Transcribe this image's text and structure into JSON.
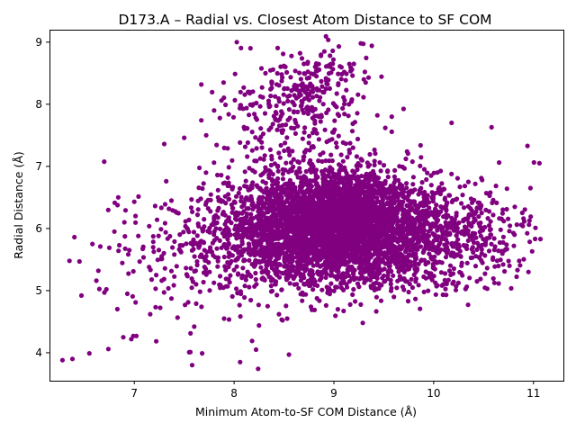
{
  "chart_data": {
    "type": "scatter",
    "title": "D173.A – Radial vs. Closest Atom Distance to SF COM",
    "xlabel": "Minimum Atom-to-SF COM Distance (Å)",
    "ylabel": "Radial Distance (Å)",
    "xlim": [
      6.15,
      11.3
    ],
    "ylim": [
      3.55,
      9.2
    ],
    "xticks": [
      7,
      8,
      9,
      10,
      11
    ],
    "yticks": [
      4,
      5,
      6,
      7,
      8,
      9
    ],
    "grid": false,
    "legend": "none",
    "marker_color": "#800080",
    "clusters": [
      {
        "center": [
          9.1,
          5.95
        ],
        "spread": [
          0.55,
          0.42
        ],
        "count": 3200
      },
      {
        "center": [
          9.0,
          6.4
        ],
        "spread": [
          0.35,
          0.35
        ],
        "count": 700
      },
      {
        "center": [
          8.5,
          5.9
        ],
        "spread": [
          0.45,
          0.45
        ],
        "count": 500
      },
      {
        "center": [
          8.6,
          7.9
        ],
        "spread": [
          0.35,
          0.4
        ],
        "count": 260
      },
      {
        "center": [
          8.9,
          8.45
        ],
        "spread": [
          0.25,
          0.25
        ],
        "count": 80
      },
      {
        "center": [
          7.6,
          5.6
        ],
        "spread": [
          0.45,
          0.6
        ],
        "count": 180
      },
      {
        "center": [
          10.3,
          5.9
        ],
        "spread": [
          0.35,
          0.4
        ],
        "count": 250
      }
    ],
    "points": [
      [
        6.28,
        3.88
      ],
      [
        6.38,
        3.9
      ],
      [
        6.55,
        3.99
      ],
      [
        6.74,
        4.06
      ],
      [
        6.35,
        5.48
      ],
      [
        6.4,
        5.86
      ],
      [
        6.45,
        5.47
      ],
      [
        6.47,
        4.92
      ],
      [
        6.58,
        5.75
      ],
      [
        6.62,
        5.16
      ],
      [
        6.64,
        5.32
      ],
      [
        6.66,
        5.71
      ],
      [
        6.7,
        4.97
      ],
      [
        6.72,
        5.02
      ],
      [
        6.75,
        5.69
      ],
      [
        6.8,
        5.95
      ],
      [
        6.85,
        5.73
      ],
      [
        6.89,
        4.25
      ],
      [
        6.9,
        6.1
      ],
      [
        6.93,
        4.95
      ],
      [
        6.95,
        5.65
      ],
      [
        6.97,
        4.22
      ],
      [
        6.99,
        4.27
      ],
      [
        7.0,
        6.43
      ],
      [
        7.02,
        4.27
      ],
      [
        7.04,
        5.88
      ],
      [
        7.3,
        7.36
      ],
      [
        7.32,
        6.76
      ],
      [
        7.5,
        7.46
      ],
      [
        7.72,
        7.5
      ],
      [
        7.8,
        7.9
      ],
      [
        7.58,
        3.8
      ],
      [
        7.68,
        3.99
      ],
      [
        8.06,
        3.85
      ],
      [
        8.18,
        4.19
      ],
      [
        8.22,
        4.05
      ],
      [
        8.55,
        3.97
      ],
      [
        8.28,
        8.27
      ],
      [
        8.7,
        8.65
      ],
      [
        8.82,
        8.62
      ],
      [
        8.87,
        8.78
      ],
      [
        9.05,
        8.93
      ],
      [
        9.27,
        8.98
      ],
      [
        9.38,
        8.94
      ],
      [
        9.3,
        8.4
      ],
      [
        9.31,
        8.52
      ],
      [
        9.2,
        8.65
      ],
      [
        9.58,
        7.8
      ],
      [
        10.18,
        7.7
      ],
      [
        10.58,
        7.63
      ],
      [
        10.94,
        7.33
      ],
      [
        11.06,
        7.05
      ],
      [
        10.97,
        6.65
      ],
      [
        10.81,
        5.9
      ],
      [
        10.9,
        6.16
      ],
      [
        11.07,
        5.83
      ],
      [
        11.02,
        6.01
      ],
      [
        10.84,
        5.33
      ],
      [
        10.95,
        5.3
      ],
      [
        10.76,
        5.4
      ],
      [
        10.71,
        5.31
      ],
      [
        10.73,
        5.74
      ],
      [
        10.2,
        5.14
      ],
      [
        9.04,
        4.7
      ],
      [
        9.29,
        4.48
      ],
      [
        8.77,
        4.74
      ],
      [
        8.25,
        4.44
      ],
      [
        8.45,
        4.62
      ],
      [
        7.9,
        4.55
      ],
      [
        7.6,
        4.42
      ]
    ]
  }
}
